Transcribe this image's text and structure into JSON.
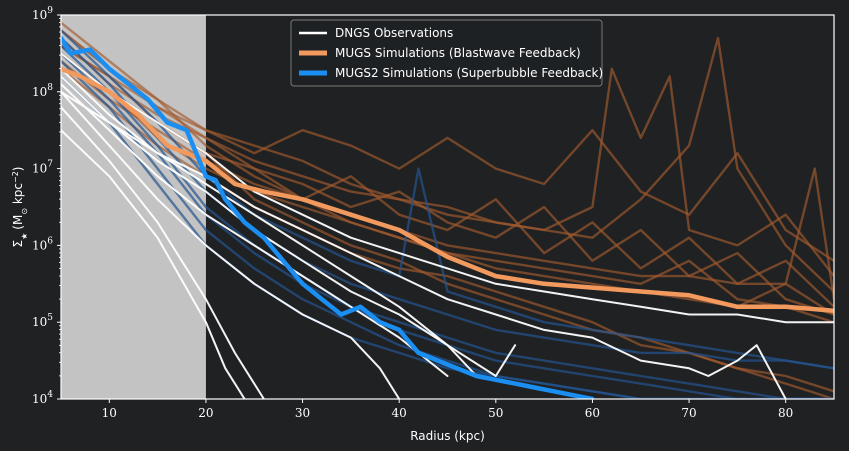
{
  "chart_data": {
    "type": "line",
    "xlabel": "Radius (kpc)",
    "ylabel_base": "Σ",
    "ylabel_sub": "★",
    "ylabel_unit": "(M",
    "ylabel_sun": "⊙",
    "ylabel_unit_rest": " kpc",
    "ylabel_exp": "−2",
    "ylabel_close": ")",
    "xlim": [
      5,
      85
    ],
    "ylim_log10": [
      4,
      9
    ],
    "y_scale": "log",
    "x_ticks": [
      "10",
      "20",
      "30",
      "40",
      "50",
      "60",
      "70",
      "80"
    ],
    "y_tick_mantissa": "10",
    "y_tick_exponents": [
      "4",
      "5",
      "6",
      "7",
      "8",
      "9"
    ],
    "grid": false,
    "legend_position": "top-center",
    "shaded_region": {
      "x0": 5,
      "x1": 20,
      "color": "#c3c3c3"
    },
    "background": "#1f2123",
    "legend": [
      {
        "label": "DNGS Observations",
        "color": "#ffffff"
      },
      {
        "label": "MUGS Simulations (Blastwave Feedback)",
        "color": "#f2995e"
      },
      {
        "label": "MUGS2 Simulations (Superbubble Feedback)",
        "color": "#1b8ef2"
      }
    ],
    "series": [
      {
        "group": "mugs_faint",
        "color": "#a35a2e",
        "x": [
          5,
          10,
          15,
          20,
          25,
          30,
          35,
          40,
          45,
          50,
          55,
          60,
          65,
          70,
          75,
          80,
          85
        ],
        "y": [
          8.6,
          8.2,
          7.8,
          7.5,
          7.2,
          7.5,
          7.3,
          7.0,
          7.4,
          7.0,
          6.8,
          7.5,
          6.7,
          6.4,
          7.2,
          6.2,
          5.8
        ]
      },
      {
        "group": "mugs_faint",
        "color": "#a35a2e",
        "x": [
          5,
          10,
          15,
          20,
          25,
          30,
          35,
          40,
          45,
          50,
          55,
          60,
          65,
          70,
          75,
          80,
          85
        ],
        "y": [
          8.8,
          8.3,
          7.9,
          7.3,
          6.9,
          6.6,
          6.9,
          6.4,
          6.2,
          6.6,
          5.9,
          6.3,
          5.7,
          6.1,
          5.5,
          5.8,
          5.2
        ]
      },
      {
        "group": "mugs_faint",
        "color": "#a35a2e",
        "x": [
          5,
          10,
          15,
          20,
          25,
          30,
          35,
          40,
          45,
          50,
          55,
          60,
          65,
          70,
          75,
          80,
          85
        ],
        "y": [
          8.5,
          8.0,
          7.6,
          7.2,
          7.0,
          6.8,
          6.5,
          6.7,
          6.3,
          6.1,
          6.5,
          5.8,
          6.2,
          5.6,
          5.9,
          5.3,
          5.1
        ]
      },
      {
        "group": "mugs_faint",
        "color": "#a35a2e",
        "x": [
          5,
          10,
          15,
          20,
          25,
          30,
          35,
          40,
          45,
          50,
          55,
          60,
          62,
          65,
          68,
          70,
          75,
          80,
          85
        ],
        "y": [
          8.7,
          8.1,
          7.7,
          7.4,
          7.1,
          6.9,
          6.7,
          6.6,
          6.4,
          6.3,
          6.2,
          6.5,
          8.3,
          7.4,
          8.2,
          6.2,
          6.0,
          6.4,
          5.6
        ]
      },
      {
        "group": "mugs_faint",
        "color": "#a35a2e",
        "x": [
          5,
          10,
          15,
          20,
          25,
          30,
          35,
          40,
          45,
          50,
          55,
          60,
          65,
          70,
          73,
          75,
          80,
          85
        ],
        "y": [
          8.9,
          8.4,
          7.9,
          7.5,
          7.3,
          7.1,
          6.8,
          6.6,
          6.5,
          6.3,
          6.2,
          6.1,
          6.6,
          7.3,
          8.7,
          7.0,
          6.0,
          5.4
        ]
      },
      {
        "group": "mugs_faint",
        "color": "#a35a2e",
        "x": [
          5,
          10,
          15,
          20,
          25,
          30,
          35,
          40,
          45,
          50,
          55,
          60,
          65,
          70,
          75,
          80,
          83,
          85
        ],
        "y": [
          8.4,
          7.9,
          7.5,
          7.1,
          6.8,
          6.6,
          6.4,
          6.2,
          6.0,
          5.9,
          5.8,
          5.7,
          5.6,
          5.6,
          5.5,
          5.5,
          7.0,
          5.3
        ]
      },
      {
        "group": "mugs_faint",
        "color": "#a35a2e",
        "x": [
          5,
          10,
          15,
          20,
          25,
          30,
          35,
          40,
          45,
          50,
          55,
          60,
          65,
          70,
          75,
          80,
          85
        ],
        "y": [
          8.6,
          8.2,
          7.6,
          7.2,
          6.6,
          6.3,
          6.0,
          5.8,
          5.5,
          5.3,
          5.1,
          4.9,
          4.8,
          4.6,
          4.4,
          4.3,
          4.1
        ]
      },
      {
        "group": "mugs_faint",
        "color": "#a35a2e",
        "x": [
          5,
          10,
          15,
          20,
          25,
          30,
          35,
          40,
          45,
          50,
          55,
          60,
          65,
          70,
          75,
          80,
          85
        ],
        "y": [
          8.3,
          7.8,
          7.3,
          6.9,
          6.5,
          6.2,
          5.9,
          5.7,
          5.6,
          5.4,
          5.2,
          5.0,
          4.7,
          4.6,
          4.4,
          4.2,
          4.0
        ]
      },
      {
        "group": "mugs_faint",
        "color": "#a35a2e",
        "x": [
          5,
          10,
          15,
          20,
          25,
          30,
          35,
          40,
          45,
          50,
          55,
          60,
          65,
          70,
          75,
          80,
          85
        ],
        "y": [
          8.8,
          8.3,
          7.8,
          7.4,
          7.0,
          6.6,
          6.3,
          6.1,
          5.9,
          5.7,
          5.6,
          5.5,
          5.4,
          5.3,
          5.2,
          5.5,
          5.1
        ]
      },
      {
        "group": "mugs_faint",
        "color": "#a35a2e",
        "x": [
          5,
          10,
          15,
          20,
          25,
          30,
          35,
          40,
          45,
          50,
          55,
          60,
          65,
          70,
          75,
          80,
          85
        ],
        "y": [
          8.5,
          8.0,
          7.4,
          7.0,
          6.7,
          6.5,
          6.3,
          6.1,
          5.9,
          5.8,
          5.7,
          5.6,
          5.5,
          5.8,
          5.3,
          5.2,
          5.0
        ]
      },
      {
        "group": "mugs2_faint",
        "color": "#24548f",
        "x": [
          5,
          10,
          15,
          20,
          25,
          30,
          35,
          40,
          45,
          50,
          55,
          60,
          65,
          70,
          75,
          80,
          85
        ],
        "y": [
          8.6,
          8.0,
          7.3,
          6.5,
          6.0,
          5.6,
          5.2,
          5.0,
          4.8,
          4.6,
          4.5,
          4.4,
          4.3,
          4.2,
          4.1,
          4.0,
          4.0
        ]
      },
      {
        "group": "mugs2_faint",
        "color": "#24548f",
        "x": [
          5,
          10,
          15,
          20,
          25,
          30,
          35,
          40,
          45,
          50,
          55,
          60,
          65,
          70,
          75,
          80,
          85
        ],
        "y": [
          8.4,
          7.8,
          7.0,
          6.2,
          5.7,
          5.3,
          5.0,
          4.7,
          4.5,
          4.3,
          4.2,
          4.1,
          4.0,
          4.0,
          4.0,
          4.0,
          4.0
        ]
      },
      {
        "group": "mugs2_faint",
        "color": "#24548f",
        "x": [
          5,
          10,
          15,
          20,
          25,
          30,
          35,
          40,
          42,
          45,
          50,
          55,
          60,
          65,
          70,
          75,
          80,
          85
        ],
        "y": [
          8.8,
          8.2,
          7.6,
          6.9,
          6.4,
          6.1,
          5.8,
          5.6,
          7.0,
          5.4,
          5.2,
          5.0,
          4.9,
          4.8,
          4.7,
          4.6,
          4.5,
          4.4
        ]
      },
      {
        "group": "mugs2_faint",
        "color": "#24548f",
        "x": [
          5,
          10,
          15,
          20,
          25,
          30,
          35,
          40,
          45,
          50,
          55,
          60,
          65,
          70,
          75,
          80,
          85
        ],
        "y": [
          8.2,
          7.6,
          6.8,
          6.0,
          5.5,
          5.1,
          4.8,
          4.6,
          4.4,
          4.3,
          4.2,
          4.1,
          4.0,
          4.0,
          4.0,
          4.0,
          4.0
        ]
      },
      {
        "group": "mugs2_faint",
        "color": "#24548f",
        "x": [
          5,
          10,
          15,
          20,
          25,
          30,
          35,
          40,
          45,
          50,
          55,
          60,
          65,
          70,
          75,
          80,
          85
        ],
        "y": [
          8.7,
          8.1,
          7.4,
          6.7,
          6.2,
          5.8,
          5.5,
          5.3,
          5.1,
          4.9,
          4.8,
          4.7,
          4.6,
          4.6,
          4.5,
          4.5,
          4.4
        ]
      },
      {
        "group": "mugs2_faint",
        "color": "#24548f",
        "x": [
          5,
          10,
          15,
          20,
          25,
          30,
          35,
          40,
          45,
          50,
          55,
          60,
          65,
          70,
          75,
          80,
          85
        ],
        "y": [
          8.5,
          7.9,
          7.2,
          6.4,
          5.9,
          5.5,
          5.2,
          4.9,
          4.7,
          4.5,
          4.4,
          4.3,
          4.2,
          4.1,
          4.0,
          4.0,
          4.0
        ]
      },
      {
        "group": "dngs",
        "color": "#ffffff",
        "x": [
          5,
          10,
          15,
          20,
          25,
          30,
          35,
          40,
          45,
          50,
          55,
          60,
          65,
          70,
          72,
          75,
          77,
          80
        ],
        "y": [
          8.0,
          7.6,
          7.2,
          6.9,
          6.5,
          6.2,
          5.9,
          5.6,
          5.3,
          5.1,
          4.9,
          4.8,
          4.5,
          4.4,
          4.3,
          4.5,
          4.7,
          4.0
        ]
      },
      {
        "group": "dngs",
        "color": "#ffffff",
        "x": [
          5,
          10,
          15,
          20,
          25,
          30,
          35,
          40,
          45,
          50,
          55,
          60,
          65,
          70,
          75,
          80,
          85
        ],
        "y": [
          8.5,
          8.0,
          7.6,
          7.2,
          6.7,
          6.4,
          6.1,
          5.9,
          5.7,
          5.5,
          5.4,
          5.3,
          5.2,
          5.1,
          5.1,
          5.0,
          5.0
        ]
      },
      {
        "group": "dngs",
        "color": "#ffffff",
        "x": [
          5,
          10,
          15,
          20,
          25,
          30,
          35,
          40,
          45,
          50,
          52
        ],
        "y": [
          8.2,
          7.6,
          7.1,
          6.7,
          6.2,
          5.8,
          5.4,
          5.1,
          4.7,
          4.3,
          4.7
        ]
      },
      {
        "group": "dngs",
        "color": "#ffffff",
        "x": [
          5,
          10,
          15,
          20,
          25,
          30,
          35,
          38,
          40
        ],
        "y": [
          8.0,
          7.3,
          6.6,
          6.0,
          5.5,
          5.1,
          4.8,
          4.4,
          4.0
        ]
      },
      {
        "group": "dngs",
        "color": "#ffffff",
        "x": [
          5,
          10,
          15,
          20,
          23,
          26
        ],
        "y": [
          7.8,
          7.1,
          6.3,
          5.3,
          4.6,
          4.0
        ]
      },
      {
        "group": "dngs",
        "color": "#ffffff",
        "x": [
          5,
          10,
          15,
          20,
          22,
          24
        ],
        "y": [
          7.5,
          6.9,
          6.1,
          5.0,
          4.4,
          4.0
        ]
      },
      {
        "group": "dngs",
        "color": "#ffffff",
        "x": [
          5,
          10,
          15,
          20,
          25,
          30,
          35,
          40,
          45,
          48
        ],
        "y": [
          8.3,
          7.7,
          7.2,
          6.8,
          6.4,
          6.0,
          5.6,
          5.2,
          4.7,
          4.3
        ]
      },
      {
        "group": "dngs",
        "color": "#ffffff",
        "x": [
          5,
          10,
          15,
          20,
          25,
          30,
          35,
          40,
          45
        ],
        "y": [
          8.1,
          7.5,
          6.9,
          6.4,
          6.0,
          5.6,
          5.2,
          4.8,
          4.3
        ]
      },
      {
        "group": "mugs_main",
        "color": "#f2995e",
        "x": [
          5,
          7,
          10,
          13,
          16,
          20,
          23,
          26,
          30,
          35,
          40,
          45,
          50,
          55,
          60,
          65,
          70,
          75,
          80,
          85
        ],
        "y": [
          8.3,
          8.2,
          8.0,
          7.7,
          7.3,
          7.1,
          6.8,
          6.7,
          6.6,
          6.4,
          6.2,
          5.85,
          5.6,
          5.5,
          5.45,
          5.4,
          5.35,
          5.2,
          5.2,
          5.15
        ]
      },
      {
        "group": "mugs2_main",
        "color": "#1b8ef2",
        "x": [
          5,
          6,
          8,
          10,
          12,
          14,
          16,
          18,
          20,
          21,
          22,
          24,
          26,
          28,
          30,
          32,
          34,
          36,
          38,
          40,
          42,
          44,
          46,
          48,
          50,
          52,
          54,
          56,
          58,
          60
        ],
        "y": [
          8.7,
          8.5,
          8.55,
          8.3,
          8.1,
          7.9,
          7.6,
          7.5,
          6.9,
          6.85,
          6.6,
          6.3,
          6.1,
          5.8,
          5.5,
          5.3,
          5.1,
          5.2,
          5.0,
          4.9,
          4.6,
          4.5,
          4.4,
          4.3,
          4.25,
          4.2,
          4.15,
          4.1,
          4.05,
          4.0
        ]
      }
    ]
  }
}
